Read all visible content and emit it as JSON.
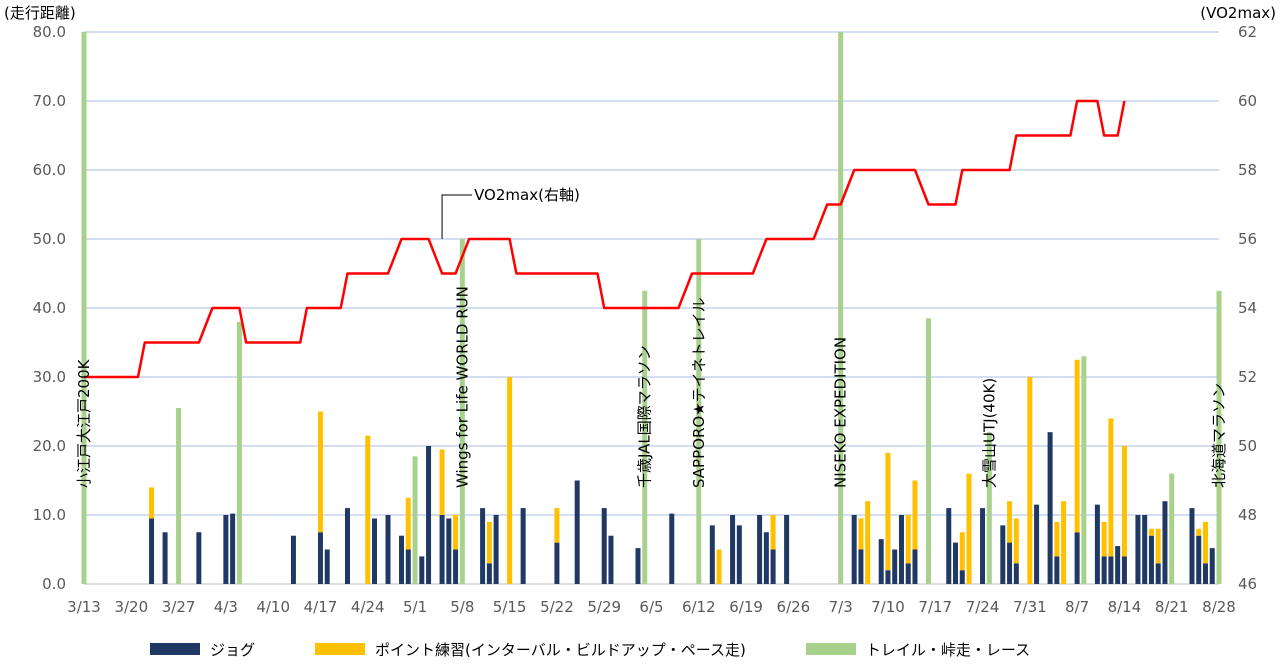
{
  "chart_data": {
    "type": "bar+line",
    "left_axis_title": "(走行距離)",
    "right_axis_title": "(VO2max)",
    "ylim": [
      0,
      80
    ],
    "y_ticks": [
      "0.0",
      "10.0",
      "20.0",
      "30.0",
      "40.0",
      "50.0",
      "60.0",
      "70.0",
      "80.0"
    ],
    "y2lim": [
      46,
      62
    ],
    "y2_ticks": [
      "46",
      "48",
      "50",
      "52",
      "54",
      "56",
      "58",
      "60",
      "62"
    ],
    "xlim_days": [
      0,
      168
    ],
    "x_ticks": [
      {
        "day": 0,
        "label": "3/13"
      },
      {
        "day": 7,
        "label": "3/20"
      },
      {
        "day": 14,
        "label": "3/27"
      },
      {
        "day": 21,
        "label": "4/3"
      },
      {
        "day": 28,
        "label": "4/10"
      },
      {
        "day": 35,
        "label": "4/17"
      },
      {
        "day": 42,
        "label": "4/24"
      },
      {
        "day": 49,
        "label": "5/1"
      },
      {
        "day": 56,
        "label": "5/8"
      },
      {
        "day": 63,
        "label": "5/15"
      },
      {
        "day": 70,
        "label": "5/22"
      },
      {
        "day": 77,
        "label": "5/29"
      },
      {
        "day": 84,
        "label": "6/5"
      },
      {
        "day": 91,
        "label": "6/12"
      },
      {
        "day": 98,
        "label": "6/19"
      },
      {
        "day": 105,
        "label": "6/26"
      },
      {
        "day": 112,
        "label": "7/3"
      },
      {
        "day": 119,
        "label": "7/10"
      },
      {
        "day": 126,
        "label": "7/17"
      },
      {
        "day": 133,
        "label": "7/24"
      },
      {
        "day": 140,
        "label": "7/31"
      },
      {
        "day": 147,
        "label": "8/7"
      },
      {
        "day": 154,
        "label": "8/14"
      },
      {
        "day": 161,
        "label": "8/21"
      },
      {
        "day": 168,
        "label": "8/28"
      }
    ],
    "series": [
      {
        "name": "ジョグ",
        "color": "#1f3864",
        "type": "stacked-bar"
      },
      {
        "name": "ポイント練習(インターバル・ビルドアップ・ペース走)",
        "color": "#ffc000",
        "type": "stacked-bar"
      },
      {
        "name": "トレイル・峠走・レース",
        "color": "#a9d18e",
        "type": "bar"
      }
    ],
    "bars": [
      {
        "day": 0,
        "trail": 80
      },
      {
        "day": 10,
        "jog": 9.5,
        "point": 4.5
      },
      {
        "day": 12,
        "jog": 7.5
      },
      {
        "day": 14,
        "trail": 25.5
      },
      {
        "day": 17,
        "jog": 7.5
      },
      {
        "day": 21,
        "jog": 10
      },
      {
        "day": 22,
        "jog": 10.2
      },
      {
        "day": 23,
        "trail": 38
      },
      {
        "day": 31,
        "jog": 7
      },
      {
        "day": 35,
        "jog": 7.5,
        "point": 17.5
      },
      {
        "day": 36,
        "jog": 5
      },
      {
        "day": 39,
        "jog": 11
      },
      {
        "day": 42,
        "point": 21.5
      },
      {
        "day": 43,
        "jog": 9.5
      },
      {
        "day": 45,
        "jog": 10
      },
      {
        "day": 47,
        "jog": 7
      },
      {
        "day": 48,
        "jog": 5,
        "point": 7.5
      },
      {
        "day": 49,
        "trail": 18.5
      },
      {
        "day": 50,
        "jog": 4
      },
      {
        "day": 51,
        "jog": 20
      },
      {
        "day": 53,
        "jog": 10,
        "point": 9.5
      },
      {
        "day": 54,
        "jog": 9.5
      },
      {
        "day": 55,
        "jog": 5,
        "point": 5
      },
      {
        "day": 56,
        "trail": 50
      },
      {
        "day": 59,
        "jog": 11
      },
      {
        "day": 60,
        "jog": 3,
        "point": 6
      },
      {
        "day": 61,
        "jog": 10
      },
      {
        "day": 63,
        "point": 30
      },
      {
        "day": 65,
        "jog": 11
      },
      {
        "day": 70,
        "jog": 6,
        "point": 5
      },
      {
        "day": 73,
        "jog": 15
      },
      {
        "day": 77,
        "jog": 11
      },
      {
        "day": 78,
        "jog": 7
      },
      {
        "day": 82,
        "jog": 5.2
      },
      {
        "day": 83,
        "trail": 42.5
      },
      {
        "day": 87,
        "jog": 10.2
      },
      {
        "day": 91,
        "trail": 50
      },
      {
        "day": 93,
        "jog": 8.5
      },
      {
        "day": 94,
        "point": 5
      },
      {
        "day": 96,
        "jog": 10
      },
      {
        "day": 97,
        "jog": 8.5
      },
      {
        "day": 100,
        "jog": 10
      },
      {
        "day": 101,
        "jog": 7.5
      },
      {
        "day": 102,
        "jog": 5,
        "point": 5
      },
      {
        "day": 104,
        "jog": 10
      },
      {
        "day": 112,
        "trail": 80
      },
      {
        "day": 114,
        "jog": 10
      },
      {
        "day": 115,
        "jog": 5,
        "point": 4.5
      },
      {
        "day": 116,
        "point": 12
      },
      {
        "day": 118,
        "jog": 6.5
      },
      {
        "day": 119,
        "jog": 2,
        "point": 17
      },
      {
        "day": 120,
        "jog": 5
      },
      {
        "day": 121,
        "jog": 10
      },
      {
        "day": 122,
        "jog": 3,
        "point": 7
      },
      {
        "day": 123,
        "jog": 5,
        "point": 10
      },
      {
        "day": 125,
        "trail": 38.5
      },
      {
        "day": 128,
        "jog": 11
      },
      {
        "day": 129,
        "jog": 6
      },
      {
        "day": 130,
        "jog": 2,
        "point": 5.5
      },
      {
        "day": 131,
        "point": 16
      },
      {
        "day": 133,
        "jog": 11
      },
      {
        "day": 134,
        "trail": 22
      },
      {
        "day": 136,
        "jog": 8.5
      },
      {
        "day": 137,
        "jog": 6,
        "point": 6
      },
      {
        "day": 138,
        "jog": 3,
        "point": 6.5
      },
      {
        "day": 140,
        "point": 30
      },
      {
        "day": 141,
        "jog": 11.5
      },
      {
        "day": 143,
        "jog": 22
      },
      {
        "day": 144,
        "jog": 4,
        "point": 5
      },
      {
        "day": 145,
        "point": 12
      },
      {
        "day": 147,
        "jog": 7.5,
        "point": 25
      },
      {
        "day": 148,
        "trail": 33
      },
      {
        "day": 150,
        "jog": 11.5
      },
      {
        "day": 151,
        "jog": 4,
        "point": 5
      },
      {
        "day": 152,
        "jog": 4,
        "point": 20
      },
      {
        "day": 153,
        "jog": 5.5
      },
      {
        "day": 154,
        "jog": 4,
        "point": 16
      },
      {
        "day": 156,
        "jog": 10
      },
      {
        "day": 157,
        "jog": 10
      },
      {
        "day": 158,
        "jog": 7,
        "point": 1
      },
      {
        "day": 159,
        "jog": 3,
        "point": 5
      },
      {
        "day": 160,
        "jog": 12
      },
      {
        "day": 161,
        "trail": 16
      },
      {
        "day": 164,
        "jog": 11
      },
      {
        "day": 165,
        "jog": 7,
        "point": 1
      },
      {
        "day": 166,
        "jog": 3,
        "point": 6
      },
      {
        "day": 167,
        "jog": 5.2
      },
      {
        "day": 168,
        "trail": 42.5
      }
    ],
    "vo2max_steps": [
      [
        0,
        52
      ],
      [
        8,
        52
      ],
      [
        9,
        53
      ],
      [
        17,
        53
      ],
      [
        19,
        54
      ],
      [
        23,
        54
      ],
      [
        24,
        53
      ],
      [
        32,
        53
      ],
      [
        33,
        54
      ],
      [
        38,
        54
      ],
      [
        39,
        55
      ],
      [
        45,
        55
      ],
      [
        47,
        56
      ],
      [
        51,
        56
      ],
      [
        53,
        55
      ],
      [
        55,
        55
      ],
      [
        57,
        56
      ],
      [
        63,
        56
      ],
      [
        64,
        55
      ],
      [
        76,
        55
      ],
      [
        77,
        54
      ],
      [
        88,
        54
      ],
      [
        90,
        55
      ],
      [
        99,
        55
      ],
      [
        101,
        56
      ],
      [
        108,
        56
      ],
      [
        110,
        57
      ],
      [
        112,
        57
      ],
      [
        114,
        58
      ],
      [
        123,
        58
      ],
      [
        125,
        57
      ],
      [
        129,
        57
      ],
      [
        130,
        58
      ],
      [
        137,
        58
      ],
      [
        138,
        59
      ],
      [
        146,
        59
      ],
      [
        147,
        60
      ],
      [
        150,
        60
      ],
      [
        151,
        59
      ],
      [
        153,
        59
      ],
      [
        154,
        60
      ]
    ],
    "vo2max_annotation": "VO2max(右軸)",
    "races": [
      {
        "day": 0,
        "label": "小江戸大江戸200K"
      },
      {
        "day": 56,
        "label": "Wings for Life WORLD RUN"
      },
      {
        "day": 83,
        "label": "千歳JAL国際マラソン"
      },
      {
        "day": 91,
        "label": "SAPPORO★テイネトレイル"
      },
      {
        "day": 112,
        "label": "NISEKO EXPEDITION"
      },
      {
        "day": 134,
        "label": "大雪山UTJ(40K)"
      },
      {
        "day": 168,
        "label": "北海道マラソン"
      }
    ]
  },
  "legend": [
    {
      "label": "ジョグ",
      "color": "#1f3864"
    },
    {
      "label": "ポイント練習(インターバル・ビルドアップ・ペース走)",
      "color": "#ffc000"
    },
    {
      "label": "トレイル・峠走・レース",
      "color": "#a9d18e"
    }
  ]
}
